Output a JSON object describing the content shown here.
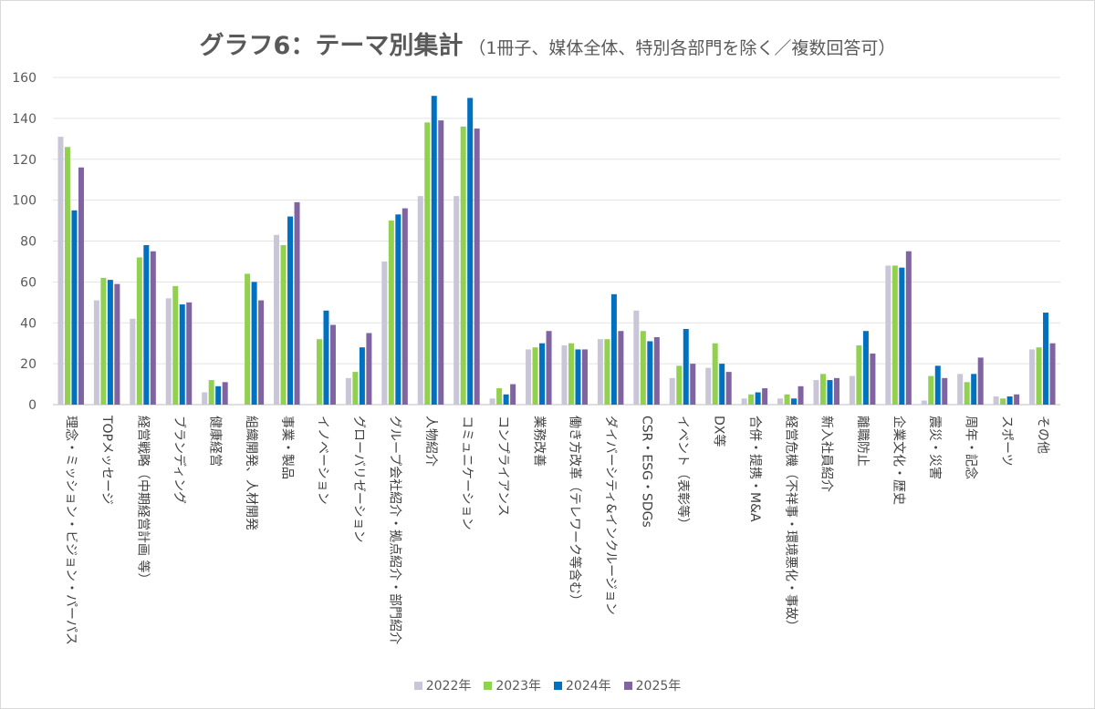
{
  "chart_data": {
    "type": "bar",
    "title": "グラフ6：テーマ別集計",
    "subtitle": "（1冊子、媒体全体、特別各部門を除く／複数回答可）",
    "ylim": [
      0,
      160
    ],
    "yticks": [
      0,
      20,
      40,
      60,
      80,
      100,
      120,
      140,
      160
    ],
    "grid": true,
    "legend_position": "bottom",
    "categories": [
      "理念・ミッション・ビジョン・パーパス",
      "TOPメッセージ",
      "経営戦略（中期経営計画 等）",
      "ブランディング",
      "健康経営",
      "組織開発、人材開発",
      "事業・製品",
      "イノベーション",
      "グローバリゼーション",
      "グループ会社紹介・拠点紹介・部門紹介",
      "人物紹介",
      "コミュニケーション",
      "コンプライアンス",
      "業務改善",
      "働き方改革（テレワーク等含む）",
      "ダイバーシティ&インクルージョン",
      "CSR・ESG・SDGs",
      "イベント（表彰等）",
      "DX等",
      "合併・提携・M&A",
      "経営危機（不祥事・環境悪化・事故）",
      "新入社員紹介",
      "離職防止",
      "企業文化・歴史",
      "震災・災害",
      "周年・記念",
      "スポーツ",
      "その他"
    ],
    "series": [
      {
        "name": "2022年",
        "color": "#c9c6d8",
        "values": [
          131,
          51,
          42,
          52,
          6,
          0,
          83,
          0,
          13,
          70,
          102,
          102,
          3,
          27,
          29,
          32,
          46,
          13,
          18,
          3,
          3,
          12,
          14,
          68,
          2,
          15,
          4,
          27
        ]
      },
      {
        "name": "2023年",
        "color": "#92d050",
        "values": [
          126,
          62,
          72,
          58,
          12,
          64,
          78,
          32,
          16,
          90,
          138,
          136,
          8,
          28,
          30,
          32,
          36,
          19,
          30,
          5,
          5,
          15,
          29,
          68,
          14,
          11,
          3,
          28
        ]
      },
      {
        "name": "2024年",
        "color": "#0070c0",
        "values": [
          95,
          61,
          78,
          49,
          9,
          60,
          92,
          46,
          28,
          93,
          151,
          150,
          5,
          30,
          27,
          54,
          31,
          37,
          20,
          6,
          3,
          12,
          36,
          67,
          19,
          15,
          4,
          45
        ]
      },
      {
        "name": "2025年",
        "color": "#8064a2",
        "values": [
          116,
          59,
          75,
          50,
          11,
          51,
          99,
          39,
          35,
          96,
          139,
          135,
          10,
          36,
          27,
          36,
          33,
          20,
          16,
          8,
          9,
          13,
          25,
          75,
          13,
          23,
          5,
          30
        ]
      }
    ]
  }
}
